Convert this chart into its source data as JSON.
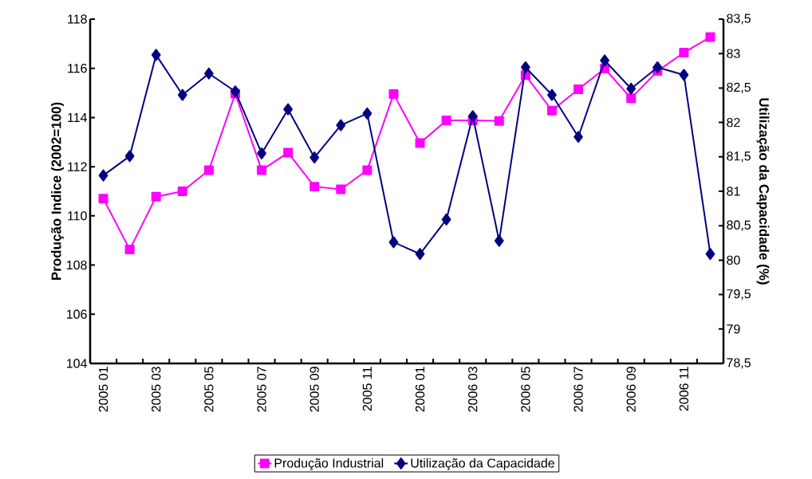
{
  "chart_data": {
    "type": "line",
    "categories": [
      "2005 01",
      null,
      "2005 03",
      null,
      "2005 05",
      null,
      "2005 07",
      null,
      "2005 09",
      null,
      "2005 11",
      null,
      "2006 01",
      null,
      "2006 03",
      null,
      "2006 05",
      null,
      "2006 07",
      null,
      "2006 09",
      null,
      "2006 11",
      null
    ],
    "series": [
      {
        "name": "Produção Industrial",
        "color": "#ff00ff",
        "marker": "square",
        "values": [
          110.7,
          108.63,
          110.78,
          111.0,
          111.86,
          114.97,
          111.86,
          112.57,
          111.19,
          111.08,
          111.86,
          114.95,
          112.96,
          113.88,
          113.88,
          113.86,
          115.72,
          114.28,
          115.15,
          115.99,
          114.78,
          115.89,
          116.64,
          117.27
        ]
      },
      {
        "name": "Utilização da Capacidade",
        "color": "#000080",
        "marker": "diamond",
        "axis": "y2",
        "values": [
          81.23,
          81.51,
          82.98,
          82.4,
          82.71,
          82.45,
          81.55,
          82.19,
          81.49,
          81.96,
          82.13,
          80.26,
          80.09,
          80.59,
          82.09,
          80.28,
          82.8,
          82.4,
          81.79,
          82.9,
          82.49,
          82.8,
          82.69,
          80.09
        ]
      }
    ],
    "ylabel": "Produção Indice (2002=100)",
    "y2label": "Utilização da Capacidade (%)",
    "ylim": [
      104,
      118
    ],
    "yticks": [
      104,
      106,
      108,
      110,
      112,
      114,
      116,
      118
    ],
    "y2lim": [
      78.5,
      83.5
    ],
    "y2ticks": [
      {
        "value": 78.5,
        "label": "78,5"
      },
      79,
      {
        "value": 79.5,
        "label": "79,5"
      },
      80,
      {
        "value": 80.5,
        "label": "80,5"
      },
      81,
      {
        "value": 81.5,
        "label": "81,5"
      },
      82,
      {
        "value": 82.5,
        "label": "82,5"
      },
      83,
      {
        "value": 83.5,
        "label": "83,5"
      }
    ],
    "grid": false,
    "legend": "bottom",
    "line_style": "solid"
  }
}
